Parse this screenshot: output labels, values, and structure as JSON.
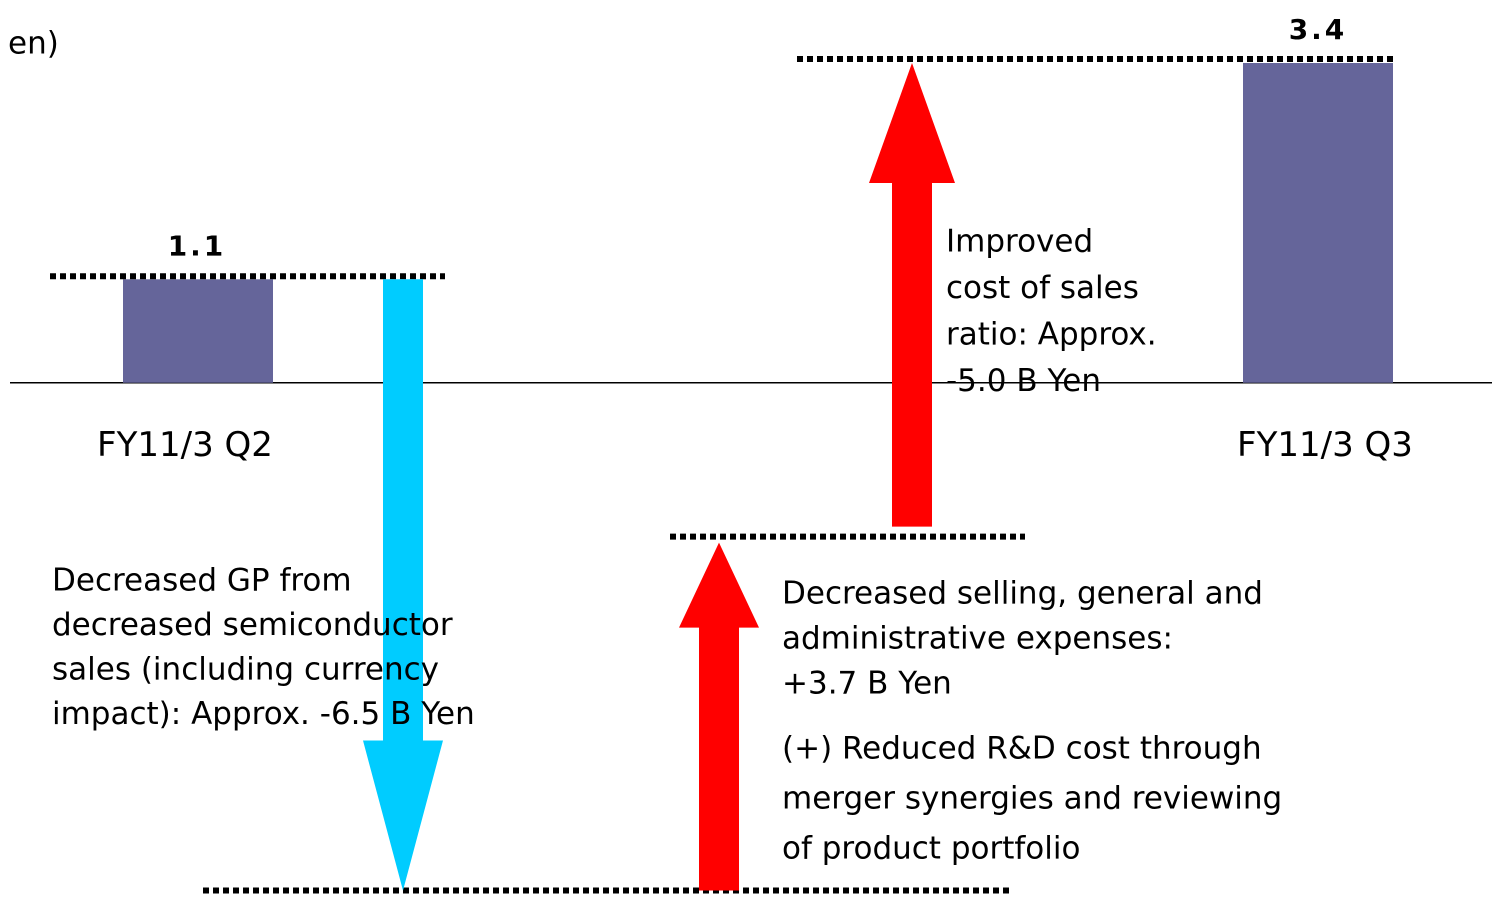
{
  "chart_data": {
    "type": "waterfall",
    "unit_label": "en)",
    "categories": [
      "FY11/3 Q2",
      "FY11/3 Q3"
    ],
    "values": [
      1.1,
      3.4
    ],
    "color": "#65659a",
    "steps": [
      -6.5,
      3.7
    ],
    "step_colors": [
      "#00ccff",
      "#ff0000"
    ],
    "final_step_color": "#ff0000",
    "ylim": [
      -5.49,
      4.07
    ],
    "annotations": [
      [
        "Decreased GP from",
        "decreased semiconductor",
        "sales (including currency",
        "impact): Approx. -6.5 B Yen"
      ],
      [
        "Decreased selling, general and",
        "administrative expenses:",
        "+3.7 B Yen"
      ],
      [
        "(+) Reduced R&D cost through",
        "merger synergies and reviewing",
        "of product portfolio"
      ],
      [
        "Improved",
        "cost of sales",
        "ratio: Approx.",
        "-5.0 B Yen"
      ]
    ]
  }
}
